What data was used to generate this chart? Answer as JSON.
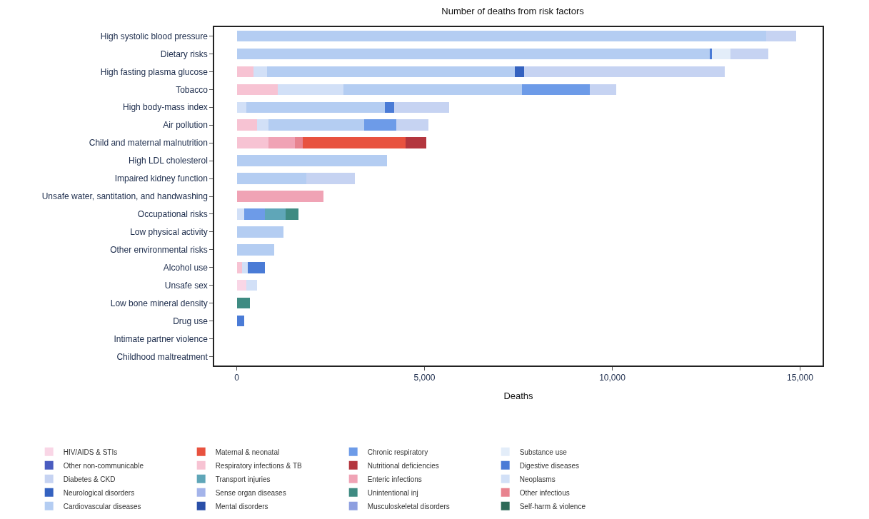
{
  "chart_data": {
    "type": "bar",
    "orientation": "horizontal",
    "stacked": true,
    "title": "Number of deaths from risk factors",
    "xlabel": "Deaths",
    "categories": [
      "High systolic blood pressure",
      "Dietary risks",
      "High fasting plasma glucose",
      "Tobacco",
      "High body-mass index",
      "Air pollution",
      "Child and maternal malnutrition",
      "High LDL cholesterol",
      "Impaired kidney function",
      "Unsafe water, santitation, and handwashing",
      "Occupational risks",
      "Low physical activity",
      "Other environmental risks",
      "Alcohol use",
      "Unsafe sex",
      "Low bone mineral density",
      "Drug use",
      "Intimate partner violence",
      "Childhood maltreatment"
    ],
    "xlim": [
      -600,
      15600
    ],
    "xticks": [
      0,
      {
        "value": 5000,
        "label": "5,000"
      },
      {
        "value": 10000,
        "label": "10,000"
      },
      {
        "value": 15000,
        "label": "15,000"
      }
    ],
    "grid": false,
    "legend": "bottom",
    "series": [
      {
        "name": "HIV/AIDS & STIs",
        "color": "#f9d6e6",
        "values": [
          null,
          null,
          null,
          null,
          null,
          null,
          null,
          null,
          null,
          null,
          null,
          null,
          null,
          null,
          250,
          null,
          null,
          null,
          null
        ]
      },
      {
        "name": "Respiratory infections & TB",
        "color": "#f7c3d3",
        "values": [
          null,
          null,
          450,
          1100,
          null,
          550,
          850,
          null,
          null,
          null,
          null,
          null,
          null,
          150,
          null,
          null,
          null,
          null,
          null
        ]
      },
      {
        "name": "Enteric infections",
        "color": "#f0a3b5",
        "values": [
          null,
          null,
          null,
          null,
          null,
          null,
          700,
          null,
          null,
          2300,
          null,
          null,
          null,
          null,
          null,
          null,
          null,
          null,
          null
        ]
      },
      {
        "name": "Other infectious",
        "color": "#e8838f",
        "values": [
          null,
          null,
          null,
          null,
          null,
          null,
          200,
          null,
          null,
          null,
          null,
          null,
          null,
          null,
          null,
          null,
          null,
          null,
          null
        ]
      },
      {
        "name": "Maternal & neonatal",
        "color": "#e8523f",
        "values": [
          null,
          null,
          null,
          null,
          null,
          null,
          2750,
          null,
          null,
          null,
          null,
          null,
          null,
          null,
          null,
          null,
          null,
          null,
          null
        ]
      },
      {
        "name": "Nutritional deficiencies",
        "color": "#b3363e",
        "values": [
          null,
          null,
          null,
          null,
          null,
          null,
          550,
          null,
          null,
          null,
          null,
          null,
          null,
          null,
          null,
          null,
          null,
          null,
          null
        ]
      },
      {
        "name": "Neoplasms",
        "color": "#d2e0f7",
        "values": [
          null,
          null,
          350,
          1750,
          250,
          300,
          null,
          null,
          null,
          null,
          200,
          null,
          null,
          150,
          300,
          null,
          null,
          null,
          null
        ]
      },
      {
        "name": "Cardiovascular diseases",
        "color": "#b4cdf2",
        "values": [
          14100,
          12600,
          6600,
          4750,
          3700,
          2550,
          null,
          4000,
          1850,
          null,
          null,
          1250,
          1000,
          null,
          null,
          null,
          null,
          null,
          null
        ]
      },
      {
        "name": "Chronic respiratory",
        "color": "#6d9be8",
        "values": [
          null,
          null,
          null,
          1800,
          null,
          850,
          null,
          null,
          null,
          null,
          550,
          null,
          null,
          null,
          null,
          null,
          null,
          null,
          null
        ]
      },
      {
        "name": "Digestive diseases",
        "color": "#4a7bd6",
        "values": [
          null,
          50,
          null,
          null,
          250,
          null,
          null,
          null,
          null,
          null,
          null,
          null,
          null,
          450,
          null,
          null,
          200,
          null,
          null
        ]
      },
      {
        "name": "Neurological disorders",
        "color": "#3462c0",
        "values": [
          null,
          null,
          250,
          null,
          null,
          null,
          null,
          null,
          null,
          null,
          null,
          null,
          null,
          null,
          null,
          null,
          null,
          null,
          null
        ]
      },
      {
        "name": "Mental disorders",
        "color": "#2a4fa8",
        "values": [
          null,
          null,
          null,
          null,
          null,
          null,
          null,
          null,
          null,
          null,
          null,
          null,
          null,
          null,
          null,
          null,
          null,
          null,
          null
        ]
      },
      {
        "name": "Substance use",
        "color": "#e3edf9",
        "values": [
          null,
          500,
          null,
          null,
          null,
          null,
          null,
          null,
          null,
          null,
          null,
          null,
          null,
          null,
          null,
          null,
          null,
          null,
          null
        ]
      },
      {
        "name": "Diabetes & CKD",
        "color": "#c6d3f2",
        "values": [
          800,
          1000,
          5350,
          700,
          1450,
          850,
          null,
          null,
          1300,
          null,
          null,
          null,
          null,
          null,
          null,
          null,
          null,
          null,
          null
        ]
      },
      {
        "name": "Sense organ diseases",
        "color": "#a4b4ea",
        "values": [
          null,
          null,
          null,
          null,
          null,
          null,
          null,
          null,
          null,
          null,
          null,
          null,
          null,
          null,
          null,
          null,
          null,
          null,
          null
        ]
      },
      {
        "name": "Musculoskeletal disorders",
        "color": "#8e9fe0",
        "values": [
          null,
          null,
          null,
          null,
          null,
          null,
          null,
          null,
          null,
          null,
          null,
          null,
          null,
          null,
          null,
          null,
          null,
          null,
          null
        ]
      },
      {
        "name": "Other non-communicable",
        "color": "#4a5cc0",
        "values": [
          null,
          null,
          null,
          null,
          null,
          null,
          null,
          null,
          null,
          null,
          null,
          null,
          null,
          null,
          null,
          null,
          null,
          null,
          null
        ]
      },
      {
        "name": "Transport injuries",
        "color": "#5fa6b8",
        "values": [
          null,
          null,
          null,
          null,
          null,
          null,
          null,
          null,
          null,
          null,
          550,
          null,
          null,
          null,
          null,
          null,
          null,
          null,
          null
        ]
      },
      {
        "name": "Unintentional inj",
        "color": "#3f8b82",
        "values": [
          null,
          null,
          null,
          null,
          null,
          null,
          null,
          null,
          null,
          null,
          350,
          null,
          null,
          null,
          null,
          350,
          null,
          null,
          null
        ]
      },
      {
        "name": "Self-harm & violence",
        "color": "#2e6a58",
        "values": [
          null,
          null,
          null,
          null,
          null,
          null,
          null,
          null,
          null,
          null,
          null,
          null,
          null,
          null,
          null,
          null,
          null,
          null,
          null
        ]
      }
    ]
  }
}
